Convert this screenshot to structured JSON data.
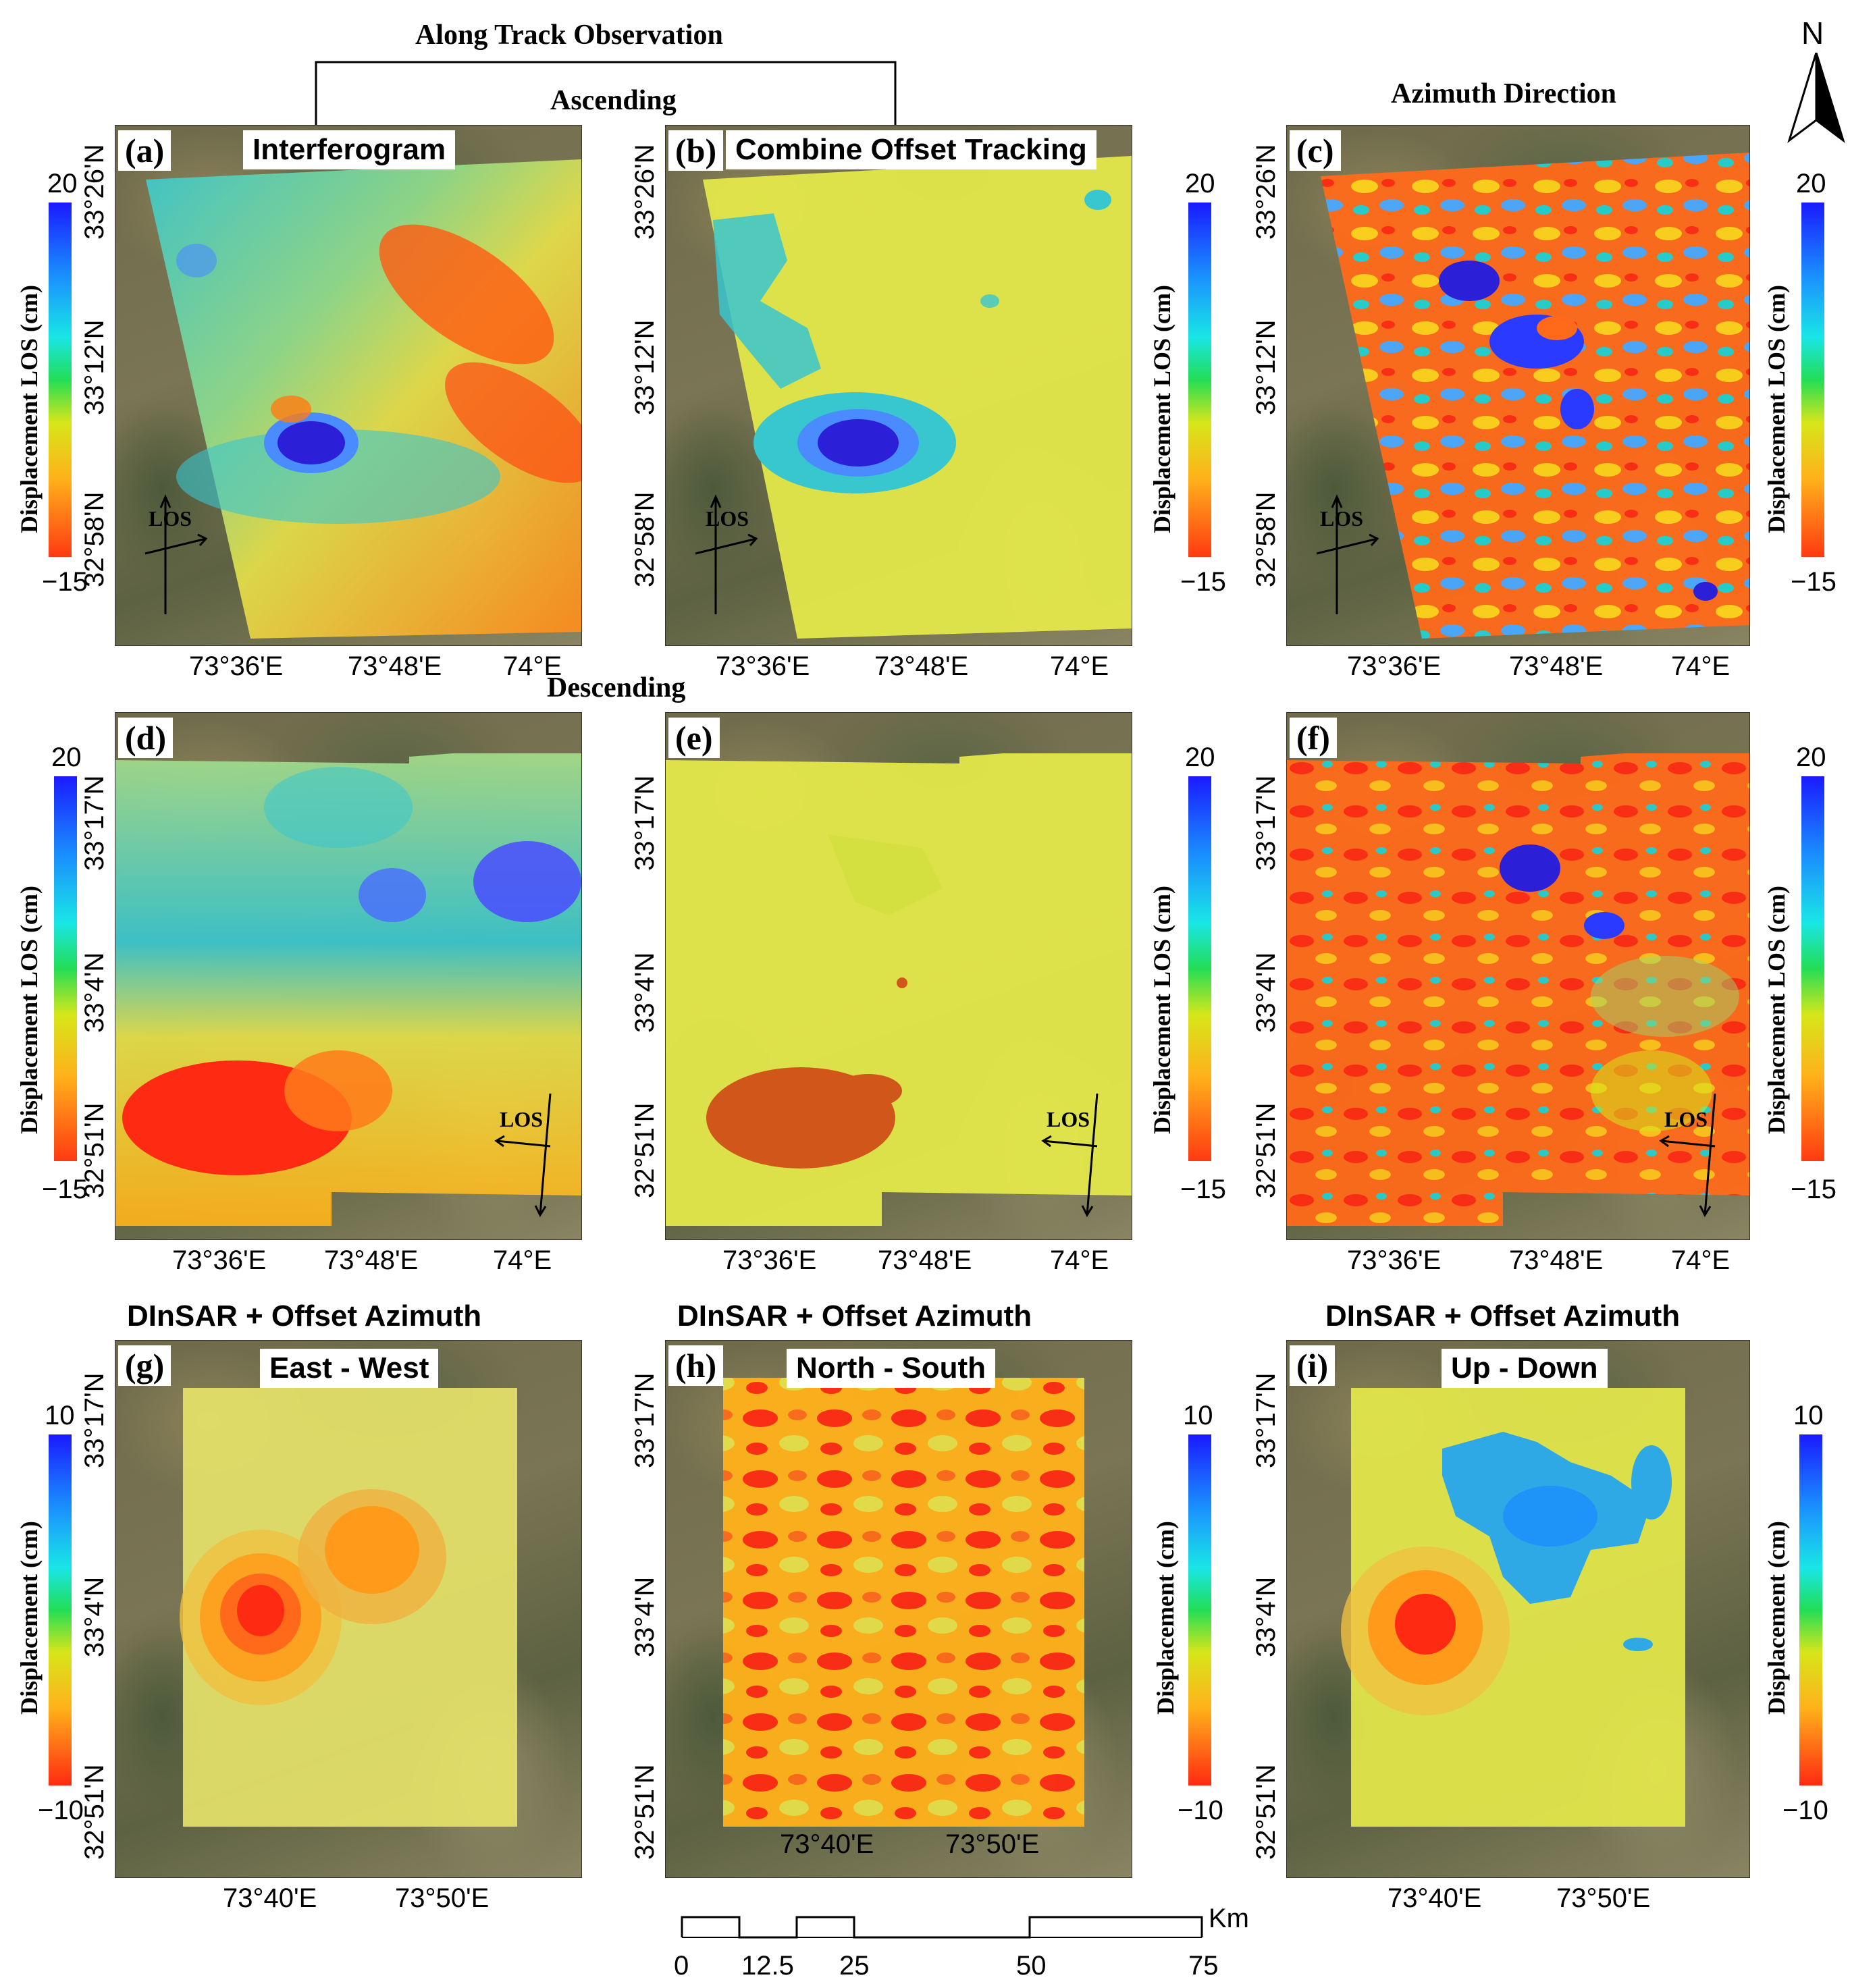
{
  "header": {
    "along_track": "Along Track Observation",
    "ascending": "Ascending",
    "descending": "Descending",
    "azimuth_direction": "Azimuth Direction",
    "north": "N"
  },
  "colors": {
    "blue": "#1a1aff",
    "cyan": "#19e6e6",
    "green": "#22dd55",
    "yellow": "#e0e84a",
    "orange": "#ff9a1a",
    "red": "#ff2a12"
  },
  "panels": {
    "a": {
      "label": "(a)",
      "title": "Interferogram"
    },
    "b": {
      "label": "(b)",
      "title": "Combine Offset Tracking"
    },
    "c": {
      "label": "(c)"
    },
    "d": {
      "label": "(d)"
    },
    "e": {
      "label": "(e)"
    },
    "f": {
      "label": "(f)"
    },
    "g": {
      "label": "(g)",
      "title": "East - West",
      "heading": "DInSAR + Offset Azimuth"
    },
    "h": {
      "label": "(h)",
      "title": "North - South",
      "heading": "DInSAR + Offset Azimuth"
    },
    "i": {
      "label": "(i)",
      "title": "Up - Down",
      "heading": "DInSAR + Offset Azimuth"
    }
  },
  "los_label": "LOS",
  "ticks": {
    "row1_x": [
      "73°36'E",
      "73°48'E",
      "74°E"
    ],
    "row1_y": [
      "33°26'N",
      "33°12'N",
      "32°58'N"
    ],
    "row2_x": [
      "73°36'E",
      "73°48'E",
      "74°E"
    ],
    "row2_y": [
      "33°17'N",
      "33°4'N",
      "32°51'N"
    ],
    "row3_x": [
      "73°40'E",
      "73°50'E"
    ],
    "row3_y": [
      "33°17'N",
      "33°4'N",
      "32°51'N"
    ]
  },
  "colorbars": {
    "los": {
      "title": "Displacement LOS (cm)",
      "max": "20",
      "min": "−15"
    },
    "disp": {
      "title": "Displacement (cm)",
      "max": "10",
      "min": "−10"
    }
  },
  "scalebar": {
    "unit": "Km",
    "labels": [
      "0",
      "12.5",
      "25",
      "50",
      "75"
    ]
  }
}
